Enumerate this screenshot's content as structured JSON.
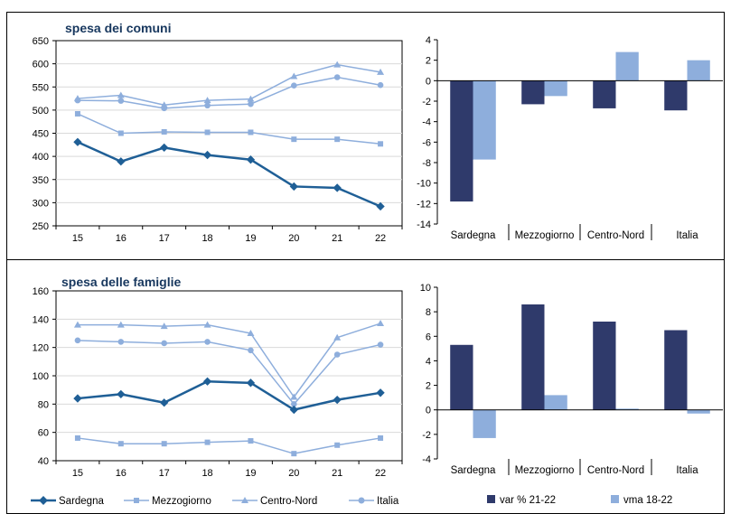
{
  "colors": {
    "sardegna": "#1f5f96",
    "light": "#8eaedc",
    "var": "#2f3a6b",
    "vma": "#8eaedc",
    "axis": "#000000",
    "grid": "#d9d9d9"
  },
  "chart_data": [
    {
      "type": "line",
      "title": "spesa dei comuni",
      "x": [
        "15",
        "16",
        "17",
        "18",
        "19",
        "20",
        "21",
        "22"
      ],
      "ylim": [
        250,
        650
      ],
      "yticks": [
        "250",
        "300",
        "350",
        "400",
        "450",
        "500",
        "550",
        "600",
        "650"
      ],
      "series": [
        {
          "name": "Sardegna",
          "values": [
            431,
            389,
            419,
            403,
            393,
            335,
            332,
            292
          ]
        },
        {
          "name": "Mezzogiorno",
          "values": [
            492,
            450,
            453,
            452,
            452,
            437,
            437,
            427
          ]
        },
        {
          "name": "Centro-Nord",
          "values": [
            525,
            532,
            511,
            521,
            524,
            573,
            598,
            582
          ]
        },
        {
          "name": "Italia",
          "values": [
            521,
            520,
            504,
            510,
            513,
            553,
            571,
            554
          ]
        }
      ]
    },
    {
      "type": "bar",
      "categories": [
        "Sardegna",
        "Mezzogiorno",
        "Centro-Nord",
        "Italia"
      ],
      "ylim": [
        -14,
        4
      ],
      "yticks": [
        "4",
        "2",
        "0",
        "-2",
        "-4",
        "-6",
        "-8",
        "-10",
        "-12",
        "-14"
      ],
      "series": [
        {
          "name": "var % 21-22",
          "values": [
            -11.8,
            -2.3,
            -2.7,
            -2.9
          ]
        },
        {
          "name": "vma 18-22",
          "values": [
            -7.7,
            -1.5,
            2.8,
            2.0
          ]
        }
      ]
    },
    {
      "type": "line",
      "title": "spesa delle famiglie",
      "x": [
        "15",
        "16",
        "17",
        "18",
        "19",
        "20",
        "21",
        "22"
      ],
      "ylim": [
        40,
        160
      ],
      "yticks": [
        "40",
        "60",
        "80",
        "100",
        "120",
        "140",
        "160"
      ],
      "series": [
        {
          "name": "Sardegna",
          "values": [
            84,
            87,
            81,
            96,
            95,
            76,
            83,
            88
          ]
        },
        {
          "name": "Mezzogiorno",
          "values": [
            56,
            52,
            52,
            53,
            54,
            45,
            51,
            56
          ]
        },
        {
          "name": "Centro-Nord",
          "values": [
            136,
            136,
            135,
            136,
            130,
            85,
            127,
            137
          ]
        },
        {
          "name": "Italia",
          "values": [
            125,
            124,
            123,
            124,
            118,
            80,
            115,
            122
          ]
        }
      ]
    },
    {
      "type": "bar",
      "categories": [
        "Sardegna",
        "Mezzogiorno",
        "Centro-Nord",
        "Italia"
      ],
      "ylim": [
        -4,
        10
      ],
      "yticks": [
        "10",
        "8",
        "6",
        "4",
        "2",
        "0",
        "-2",
        "-4"
      ],
      "series": [
        {
          "name": "var % 21-22",
          "values": [
            5.3,
            8.6,
            7.2,
            6.5
          ]
        },
        {
          "name": "vma 18-22",
          "values": [
            -2.3,
            1.2,
            0.1,
            -0.3
          ]
        }
      ]
    }
  ]
}
